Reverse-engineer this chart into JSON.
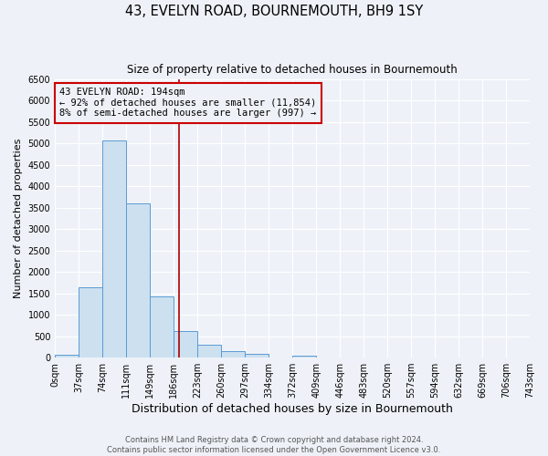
{
  "title": "43, EVELYN ROAD, BOURNEMOUTH, BH9 1SY",
  "subtitle": "Size of property relative to detached houses in Bournemouth",
  "xlabel": "Distribution of detached houses by size in Bournemouth",
  "ylabel": "Number of detached properties",
  "bin_edges": [
    0,
    37,
    74,
    111,
    149,
    186,
    223,
    260,
    297,
    334,
    372,
    409,
    446,
    483,
    520,
    557,
    594,
    632,
    669,
    706,
    743
  ],
  "bar_heights": [
    60,
    1650,
    5080,
    3600,
    1420,
    610,
    300,
    150,
    90,
    0,
    55,
    0,
    0,
    0,
    0,
    0,
    0,
    0,
    0,
    0
  ],
  "bar_color": "#cce0f0",
  "bar_edge_color": "#5b9bd5",
  "property_line_x": 194,
  "property_line_color": "#aa0000",
  "ylim": [
    0,
    6500
  ],
  "yticks": [
    0,
    500,
    1000,
    1500,
    2000,
    2500,
    3000,
    3500,
    4000,
    4500,
    5000,
    5500,
    6000,
    6500
  ],
  "annotation_title": "43 EVELYN ROAD: 194sqm",
  "annotation_line1": "← 92% of detached houses are smaller (11,854)",
  "annotation_line2": "8% of semi-detached houses are larger (997) →",
  "annotation_box_color": "#cc0000",
  "footer_line1": "Contains HM Land Registry data © Crown copyright and database right 2024.",
  "footer_line2": "Contains public sector information licensed under the Open Government Licence v3.0.",
  "background_color": "#eef2f8",
  "grid_color": "#ffffff",
  "title_fontsize": 10.5,
  "subtitle_fontsize": 8.5,
  "xlabel_fontsize": 9,
  "ylabel_fontsize": 8,
  "tick_fontsize": 7,
  "footer_fontsize": 6,
  "annot_fontsize": 7.5
}
